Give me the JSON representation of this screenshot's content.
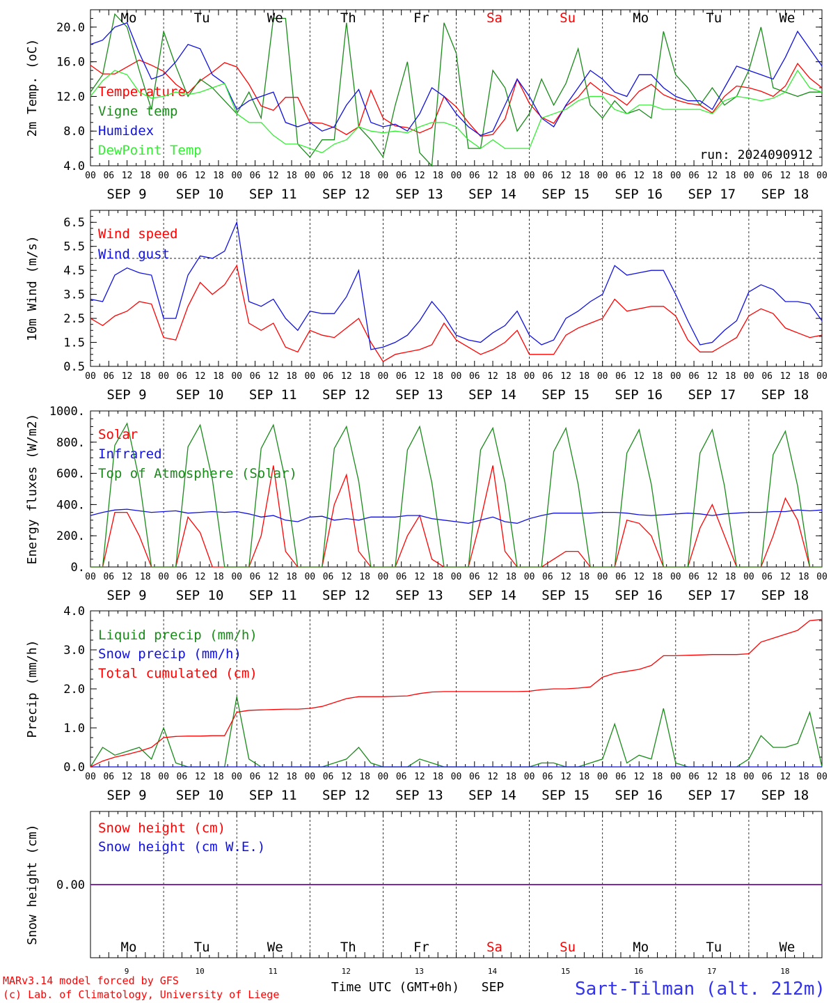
{
  "colors": {
    "red": "#ff0000",
    "green": "#1a8a1a",
    "blue": "#1010e0",
    "lightgreen": "#33ee33",
    "purple": "#8020a0",
    "footer_blue": "#3333ee"
  },
  "days": [
    "Mo",
    "Tu",
    "We",
    "Th",
    "Fr",
    "Sa",
    "Su",
    "Mo",
    "Tu",
    "We"
  ],
  "weekend_indices": [
    5,
    6
  ],
  "date_labels": [
    "SEP  9",
    "SEP 10",
    "SEP 11",
    "SEP 12",
    "SEP 13",
    "SEP 14",
    "SEP 15",
    "SEP 16",
    "SEP 17",
    "SEP 18"
  ],
  "hour_ticks": [
    "00",
    "06",
    "12",
    "18"
  ],
  "hour_end": "00",
  "day_numbers": [
    "9",
    "10",
    "11",
    "12",
    "13",
    "14",
    "15",
    "16",
    "17",
    "18"
  ],
  "footer": {
    "model": "MARv3.14 model forced by GFS",
    "lab": "(c) Lab. of Climatology, University of Liege",
    "axis_title": "Time UTC (GMT+0h)",
    "month": "SEP",
    "station": "Sart-Tilman (alt. 212m)"
  },
  "chart_data": [
    {
      "type": "line",
      "ylabel": "2m Temp. (oC)",
      "ylim": [
        4,
        22
      ],
      "yticks": [
        "4.0",
        "8.0",
        "12.0",
        "16.0",
        "20.0"
      ],
      "ytick_values": [
        4,
        8,
        12,
        16,
        20
      ],
      "annotation": "run: 2024090912",
      "x_unit": "hours since SEP 9 00 UTC, 3-hourly",
      "series": [
        {
          "name": "Temperature",
          "color": "#ff0000",
          "values": [
            15.6,
            14.6,
            14.6,
            15.4,
            16.2,
            15.6,
            14.9,
            13.4,
            12.4,
            13.8,
            14.8,
            15.9,
            15.4,
            13.4,
            10.9,
            10.4,
            11.9,
            11.9,
            9.0,
            8.9,
            8.4,
            7.6,
            8.5,
            12.7,
            9.5,
            8.6,
            8.4,
            7.8,
            8.4,
            12.0,
            10.8,
            9.0,
            7.4,
            7.6,
            9.4,
            14.0,
            11.2,
            9.6,
            8.9,
            10.9,
            11.9,
            13.6,
            12.5,
            12.0,
            11.0,
            12.6,
            13.4,
            12.2,
            11.6,
            11.2,
            11.0,
            10.1,
            12.0,
            13.2,
            13.0,
            12.6,
            12.0,
            13.2,
            15.8,
            14.1,
            13.0
          ]
        },
        {
          "name": "Vigne temp",
          "color": "#1a8a1a",
          "values": [
            12.5,
            14.5,
            21.5,
            20.0,
            15.0,
            10.5,
            19.5,
            15.5,
            12.0,
            14.0,
            13.0,
            11.5,
            10.0,
            12.5,
            9.5,
            21.0,
            21.0,
            6.5,
            5.0,
            7.0,
            7.0,
            20.5,
            8.5,
            7.0,
            5.0,
            11.0,
            16.0,
            5.5,
            4.0,
            20.5,
            17.0,
            6.0,
            6.0,
            15.0,
            13.0,
            8.0,
            10.0,
            14.0,
            11.0,
            13.5,
            17.5,
            11.0,
            9.5,
            11.5,
            10.0,
            10.5,
            9.5,
            19.5,
            14.5,
            13.0,
            11.0,
            13.0,
            11.0,
            12.0,
            15.0,
            20.0,
            13.0,
            12.5,
            12.0,
            12.5,
            12.5
          ]
        },
        {
          "name": "Humidex",
          "color": "#1010e0",
          "values": [
            18.0,
            18.5,
            20.0,
            20.5,
            17.0,
            14.0,
            14.5,
            16.0,
            18.0,
            17.5,
            14.5,
            13.5,
            10.5,
            11.5,
            12.0,
            12.5,
            9.0,
            8.5,
            9.0,
            8.0,
            8.5,
            11.0,
            12.8,
            9.0,
            8.5,
            8.8,
            8.0,
            10.0,
            13.0,
            12.0,
            10.0,
            8.5,
            7.5,
            8.0,
            11.0,
            14.0,
            12.0,
            9.5,
            8.5,
            11.0,
            13.0,
            15.0,
            14.0,
            12.5,
            12.0,
            14.5,
            14.5,
            13.0,
            12.0,
            11.5,
            11.5,
            10.5,
            13.0,
            15.5,
            15.0,
            14.5,
            14.0,
            16.5,
            19.5,
            17.5,
            15.5
          ]
        },
        {
          "name": "DewPoint Temp",
          "color": "#33ee33",
          "values": [
            12.0,
            13.8,
            15.0,
            14.5,
            12.5,
            11.8,
            12.0,
            12.5,
            12.2,
            12.5,
            13.0,
            13.5,
            10.0,
            9.0,
            9.0,
            7.5,
            6.5,
            6.5,
            6.0,
            5.5,
            6.5,
            7.0,
            8.5,
            8.0,
            7.8,
            8.0,
            7.8,
            8.5,
            9.0,
            9.0,
            8.5,
            7.0,
            6.0,
            7.0,
            6.0,
            6.0,
            6.0,
            9.5,
            10.0,
            10.5,
            11.5,
            12.0,
            12.0,
            10.5,
            10.0,
            11.0,
            11.0,
            10.5,
            10.5,
            10.5,
            10.5,
            10.0,
            11.5,
            12.0,
            11.8,
            11.5,
            11.8,
            12.5,
            15.0,
            13.0,
            12.5
          ]
        }
      ]
    },
    {
      "type": "line",
      "ylabel": "10m Wind (m/s)",
      "ylim": [
        0.5,
        7.0
      ],
      "yticks": [
        "0.5",
        "1.5",
        "2.5",
        "3.5",
        "4.5",
        "5.5",
        "6.5"
      ],
      "ytick_values": [
        0.5,
        1.5,
        2.5,
        3.5,
        4.5,
        5.5,
        6.5
      ],
      "hline": 5,
      "x_unit": "hours since SEP 9 00 UTC, 3-hourly",
      "series": [
        {
          "name": "Wind speed",
          "color": "#ff0000",
          "values": [
            2.5,
            2.2,
            2.6,
            2.8,
            3.2,
            3.1,
            1.7,
            1.6,
            3.0,
            4.0,
            3.5,
            3.9,
            4.7,
            2.3,
            2.0,
            2.3,
            1.3,
            1.1,
            2.0,
            1.8,
            1.7,
            2.1,
            2.5,
            1.5,
            0.7,
            1.0,
            1.1,
            1.2,
            1.4,
            2.3,
            1.6,
            1.3,
            1.0,
            1.2,
            1.5,
            2.0,
            1.0,
            1.0,
            1.0,
            1.8,
            2.1,
            2.3,
            2.5,
            3.3,
            2.8,
            2.9,
            3.0,
            3.0,
            2.6,
            1.6,
            1.1,
            1.1,
            1.4,
            1.7,
            2.6,
            2.9,
            2.7,
            2.1,
            1.9,
            1.7,
            1.8
          ]
        },
        {
          "name": "Wind gust",
          "color": "#1010e0",
          "values": [
            3.3,
            3.2,
            4.3,
            4.6,
            4.4,
            4.3,
            2.5,
            2.5,
            4.3,
            5.1,
            5.0,
            5.3,
            6.5,
            3.2,
            3.0,
            3.3,
            2.5,
            2.0,
            2.8,
            2.7,
            2.7,
            3.4,
            4.5,
            1.2,
            1.3,
            1.5,
            1.8,
            2.4,
            3.2,
            2.6,
            1.8,
            1.6,
            1.5,
            1.9,
            2.2,
            2.8,
            1.8,
            1.4,
            1.6,
            2.5,
            2.8,
            3.2,
            3.5,
            4.7,
            4.3,
            4.4,
            4.5,
            4.5,
            3.5,
            2.4,
            1.4,
            1.5,
            2.0,
            2.4,
            3.6,
            3.9,
            3.7,
            3.2,
            3.2,
            3.1,
            2.4
          ]
        }
      ]
    },
    {
      "type": "line",
      "ylabel": "Energy fluxes (W/m2)",
      "ylim": [
        0,
        1000
      ],
      "yticks": [
        "0.",
        "200.",
        "400.",
        "600.",
        "800.",
        "1000."
      ],
      "ytick_values": [
        0,
        200,
        400,
        600,
        800,
        1000
      ],
      "x_unit": "hours since SEP 9 00 UTC, 3-hourly",
      "series": [
        {
          "name": "Solar",
          "color": "#ff0000",
          "values": [
            0,
            0,
            350,
            350,
            200,
            0,
            0,
            0,
            320,
            220,
            0,
            0,
            0,
            0,
            200,
            650,
            100,
            0,
            0,
            0,
            400,
            590,
            100,
            0,
            0,
            0,
            200,
            330,
            50,
            0,
            0,
            0,
            300,
            650,
            100,
            0,
            0,
            0,
            50,
            100,
            100,
            0,
            0,
            0,
            300,
            280,
            200,
            0,
            0,
            0,
            250,
            400,
            200,
            0,
            0,
            0,
            200,
            440,
            300,
            0,
            0
          ]
        },
        {
          "name": "Infrared",
          "color": "#1010e0",
          "values": [
            330,
            350,
            365,
            370,
            360,
            350,
            355,
            360,
            345,
            350,
            355,
            350,
            355,
            340,
            320,
            330,
            300,
            290,
            320,
            325,
            300,
            310,
            300,
            320,
            320,
            320,
            330,
            330,
            310,
            300,
            290,
            280,
            300,
            320,
            290,
            280,
            310,
            330,
            345,
            345,
            345,
            345,
            350,
            350,
            345,
            335,
            330,
            335,
            340,
            345,
            340,
            330,
            340,
            345,
            350,
            350,
            355,
            355,
            365,
            360,
            365
          ]
        },
        {
          "name": "Top of Atmosphere (Solar)",
          "color": "#1a8a1a",
          "values": [
            0,
            0,
            780,
            920,
            560,
            0,
            0,
            0,
            770,
            910,
            560,
            0,
            0,
            0,
            760,
            910,
            550,
            0,
            0,
            0,
            760,
            900,
            550,
            0,
            0,
            0,
            750,
            900,
            540,
            0,
            0,
            0,
            750,
            890,
            540,
            0,
            0,
            0,
            740,
            890,
            530,
            0,
            0,
            0,
            730,
            880,
            530,
            0,
            0,
            0,
            730,
            880,
            520,
            0,
            0,
            0,
            720,
            870,
            520,
            0,
            0
          ]
        }
      ]
    },
    {
      "type": "line",
      "ylabel": "Precip (mm/h)",
      "ylim": [
        0,
        4
      ],
      "yticks": [
        "0.0",
        "1.0",
        "2.0",
        "3.0",
        "4.0"
      ],
      "ytick_values": [
        0,
        1,
        2,
        3,
        4
      ],
      "x_unit": "hours since SEP 9 00 UTC, 3-hourly",
      "series": [
        {
          "name": "Liquid precip (mm/h)",
          "color": "#1a8a1a",
          "values": [
            0.0,
            0.5,
            0.3,
            0.4,
            0.5,
            0.2,
            1.0,
            0.1,
            0.0,
            0.0,
            0.0,
            0.0,
            1.8,
            0.2,
            0.0,
            0.0,
            0.0,
            0.0,
            0.0,
            0.0,
            0.1,
            0.2,
            0.5,
            0.1,
            0.0,
            0.0,
            0.0,
            0.2,
            0.1,
            0.0,
            0.0,
            0.0,
            0.0,
            0.0,
            0.0,
            0.0,
            0.0,
            0.1,
            0.1,
            0.0,
            0.0,
            0.1,
            0.2,
            1.1,
            0.1,
            0.3,
            0.2,
            1.5,
            0.1,
            0.0,
            0.0,
            0.0,
            0.0,
            0.0,
            0.2,
            0.8,
            0.5,
            0.5,
            0.6,
            1.4,
            0.0
          ]
        },
        {
          "name": "Snow precip (mm/h)",
          "color": "#1010e0",
          "values": [
            0,
            0,
            0,
            0,
            0,
            0,
            0,
            0,
            0,
            0,
            0,
            0,
            0,
            0,
            0,
            0,
            0,
            0,
            0,
            0,
            0,
            0,
            0,
            0,
            0,
            0,
            0,
            0,
            0,
            0,
            0,
            0,
            0,
            0,
            0,
            0,
            0,
            0,
            0,
            0,
            0,
            0,
            0,
            0,
            0,
            0,
            0,
            0,
            0,
            0,
            0,
            0,
            0,
            0,
            0,
            0,
            0,
            0,
            0,
            0,
            0
          ]
        },
        {
          "name": "Total cumulated (cm)",
          "color": "#ff0000",
          "values": [
            0.0,
            0.15,
            0.25,
            0.32,
            0.4,
            0.5,
            0.75,
            0.78,
            0.79,
            0.79,
            0.8,
            0.8,
            1.4,
            1.45,
            1.46,
            1.47,
            1.48,
            1.48,
            1.5,
            1.55,
            1.65,
            1.75,
            1.8,
            1.8,
            1.8,
            1.81,
            1.82,
            1.88,
            1.92,
            1.93,
            1.93,
            1.93,
            1.93,
            1.93,
            1.93,
            1.93,
            1.94,
            1.98,
            2.0,
            2.0,
            2.02,
            2.05,
            2.3,
            2.4,
            2.45,
            2.5,
            2.6,
            2.85,
            2.85,
            2.86,
            2.87,
            2.88,
            2.88,
            2.88,
            2.9,
            3.2,
            3.3,
            3.4,
            3.5,
            3.75,
            3.78
          ]
        }
      ]
    },
    {
      "type": "line",
      "ylabel": "Snow height (cm)",
      "ylim": [
        -1,
        1
      ],
      "yticks": [
        "0.00"
      ],
      "ytick_values": [
        0
      ],
      "x_unit": "hours since SEP 9 00 UTC, 3-hourly",
      "series": [
        {
          "name": "Snow height (cm)",
          "color": "#ff0000",
          "values": [
            0,
            0,
            0,
            0,
            0,
            0,
            0,
            0,
            0,
            0,
            0,
            0,
            0,
            0,
            0,
            0,
            0,
            0,
            0,
            0,
            0,
            0,
            0,
            0,
            0,
            0,
            0,
            0,
            0,
            0,
            0,
            0,
            0,
            0,
            0,
            0,
            0,
            0,
            0,
            0,
            0,
            0,
            0,
            0,
            0,
            0,
            0,
            0,
            0,
            0,
            0,
            0,
            0,
            0,
            0,
            0,
            0,
            0,
            0,
            0,
            0
          ]
        },
        {
          "name": "Snow height (cm W.E.)",
          "color": "#1010e0",
          "values": [
            0,
            0,
            0,
            0,
            0,
            0,
            0,
            0,
            0,
            0,
            0,
            0,
            0,
            0,
            0,
            0,
            0,
            0,
            0,
            0,
            0,
            0,
            0,
            0,
            0,
            0,
            0,
            0,
            0,
            0,
            0,
            0,
            0,
            0,
            0,
            0,
            0,
            0,
            0,
            0,
            0,
            0,
            0,
            0,
            0,
            0,
            0,
            0,
            0,
            0,
            0,
            0,
            0,
            0,
            0,
            0,
            0,
            0,
            0,
            0,
            0
          ]
        }
      ]
    }
  ]
}
